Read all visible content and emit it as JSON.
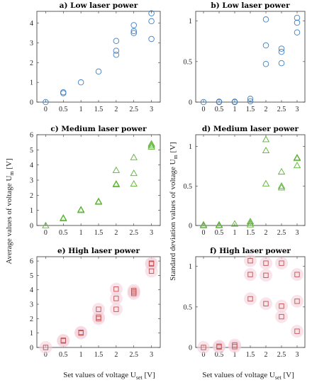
{
  "figure": {
    "ylabel_left": "Average values of voltage U",
    "ylabel_left_sub": "m",
    "ylabel_left_unit": " [V]",
    "ylabel_right": "Standard deviation values of voltage U",
    "ylabel_right_sub": "m",
    "ylabel_right_unit": " [V]",
    "xlabel_left": "Set values of voltage U",
    "xlabel_left_sub": "set",
    "xlabel_left_unit": " [V]",
    "xlabel_right": "Set values of voltage U",
    "xlabel_right_sub": "set",
    "xlabel_right_unit": " [V]"
  },
  "chart_data": [
    {
      "id": "a",
      "type": "scatter",
      "title": "a) Low laser power",
      "marker": "circle",
      "color": "#3f7fc1",
      "xlim": [
        -0.25,
        3.25
      ],
      "ylim": [
        0,
        4.6
      ],
      "xticks": [
        0,
        0.5,
        1,
        1.5,
        2,
        2.5,
        3
      ],
      "xticklabels": [
        "0",
        "0.5",
        "1",
        "1.5",
        "2",
        "2.5",
        "3"
      ],
      "yticks": [
        0,
        1,
        2,
        3,
        4
      ],
      "yticklabels": [
        "0",
        "1",
        "2",
        "3",
        "4"
      ],
      "points": [
        [
          0,
          0
        ],
        [
          0.5,
          0.45
        ],
        [
          0.5,
          0.5
        ],
        [
          1,
          1.0
        ],
        [
          1.5,
          1.55
        ],
        [
          2,
          2.4
        ],
        [
          2,
          2.6
        ],
        [
          2,
          3.1
        ],
        [
          2.5,
          3.5
        ],
        [
          2.5,
          3.6
        ],
        [
          2.5,
          3.9
        ],
        [
          3,
          3.2
        ],
        [
          3,
          4.1
        ],
        [
          3,
          4.5
        ]
      ]
    },
    {
      "id": "b",
      "type": "scatter",
      "title": "b) Low laser power",
      "marker": "circle",
      "color": "#3f7fc1",
      "xlim": [
        -0.25,
        3.25
      ],
      "ylim": [
        0,
        1.12
      ],
      "xticks": [
        0,
        0.5,
        1,
        1.5,
        2,
        2.5,
        3
      ],
      "xticklabels": [
        "0",
        "0.5",
        "1",
        "1.5",
        "2",
        "2.5",
        "3"
      ],
      "yticks": [
        0,
        0.5,
        1
      ],
      "yticklabels": [
        "0",
        "0.5",
        "1"
      ],
      "points": [
        [
          0,
          0
        ],
        [
          0.5,
          0
        ],
        [
          0.5,
          0.005
        ],
        [
          1,
          0
        ],
        [
          1,
          0.005
        ],
        [
          1.5,
          0.01
        ],
        [
          1.5,
          0.04
        ],
        [
          2,
          0.47
        ],
        [
          2,
          0.7
        ],
        [
          2,
          1.02
        ],
        [
          2.5,
          0.48
        ],
        [
          2.5,
          0.62
        ],
        [
          2.5,
          0.66
        ],
        [
          3,
          0.86
        ],
        [
          3,
          0.98
        ],
        [
          3,
          1.04
        ]
      ]
    },
    {
      "id": "c",
      "type": "scatter",
      "title": "c) Medium laser power",
      "marker": "triangle",
      "color": "#5ab232",
      "xlim": [
        -0.25,
        3.25
      ],
      "ylim": [
        0,
        6
      ],
      "xticks": [
        0,
        0.5,
        1,
        1.5,
        2,
        2.5,
        3
      ],
      "xticklabels": [
        "0",
        "0.5",
        "1",
        "1.5",
        "2",
        "2.5",
        "3"
      ],
      "yticks": [
        0,
        1,
        2,
        3,
        4,
        5,
        6
      ],
      "yticklabels": [
        "0",
        "1",
        "2",
        "3",
        "4",
        "5",
        "6"
      ],
      "points": [
        [
          0,
          0
        ],
        [
          0.5,
          0.45
        ],
        [
          0.5,
          0.5
        ],
        [
          1,
          1.0
        ],
        [
          1,
          1.05
        ],
        [
          1.5,
          1.55
        ],
        [
          1.5,
          1.6
        ],
        [
          2,
          2.7
        ],
        [
          2,
          2.75
        ],
        [
          2,
          3.65
        ],
        [
          2.5,
          2.75
        ],
        [
          2.5,
          3.45
        ],
        [
          2.5,
          4.5
        ],
        [
          3,
          5.2
        ],
        [
          3,
          5.3
        ],
        [
          3,
          5.4
        ]
      ]
    },
    {
      "id": "d",
      "type": "scatter",
      "title": "d) Medium laser power",
      "marker": "triangle",
      "color": "#5ab232",
      "xlim": [
        -0.25,
        3.25
      ],
      "ylim": [
        0,
        1.15
      ],
      "xticks": [
        0,
        0.5,
        1,
        1.5,
        2,
        2.5,
        3
      ],
      "xticklabels": [
        "0",
        "0.5",
        "1",
        "1.5",
        "2",
        "2.5",
        "3"
      ],
      "yticks": [
        0,
        0.5,
        1
      ],
      "yticklabels": [
        "0",
        "0.5",
        "1"
      ],
      "points": [
        [
          0,
          0
        ],
        [
          0,
          0.01
        ],
        [
          0.5,
          0
        ],
        [
          0.5,
          0.01
        ],
        [
          1,
          0.02
        ],
        [
          1.5,
          0.01
        ],
        [
          1.5,
          0.03
        ],
        [
          1.5,
          0.05
        ],
        [
          2,
          0.53
        ],
        [
          2,
          0.95
        ],
        [
          2,
          1.09
        ],
        [
          2.5,
          0.48
        ],
        [
          2.5,
          0.5
        ],
        [
          2.5,
          0.68
        ],
        [
          3,
          0.76
        ],
        [
          3,
          0.85
        ],
        [
          3,
          0.86
        ]
      ]
    },
    {
      "id": "e",
      "type": "scatter",
      "title": "e) High laser power",
      "marker": "square",
      "color": "#c0504d",
      "glow": "#f2cdd8",
      "xlim": [
        -0.25,
        3.25
      ],
      "ylim": [
        0,
        6.3
      ],
      "xticks": [
        0,
        0.5,
        1,
        1.5,
        2,
        2.5,
        3
      ],
      "xticklabels": [
        "0",
        "0.5",
        "1",
        "1.5",
        "2",
        "2.5",
        "3"
      ],
      "yticks": [
        0,
        1,
        2,
        3,
        4,
        5,
        6
      ],
      "yticklabels": [
        "0",
        "1",
        "2",
        "3",
        "4",
        "5",
        "6"
      ],
      "points": [
        [
          0,
          0
        ],
        [
          0.5,
          0.45
        ],
        [
          0.5,
          0.5
        ],
        [
          1,
          1.0
        ],
        [
          1,
          1.05
        ],
        [
          1.5,
          2.0
        ],
        [
          1.5,
          2.1
        ],
        [
          1.5,
          2.65
        ],
        [
          2,
          2.65
        ],
        [
          2,
          3.4
        ],
        [
          2,
          4.05
        ],
        [
          2.5,
          3.75
        ],
        [
          2.5,
          3.85
        ],
        [
          2.5,
          3.95
        ],
        [
          3,
          5.3
        ],
        [
          3,
          5.8
        ],
        [
          3,
          5.85
        ]
      ]
    },
    {
      "id": "f",
      "type": "scatter",
      "title": "f) High laser power",
      "marker": "square",
      "color": "#c0504d",
      "glow": "#f2cdd8",
      "xlim": [
        -0.25,
        3.25
      ],
      "ylim": [
        0,
        1.12
      ],
      "xticks": [
        0,
        0.5,
        1,
        1.5,
        2,
        2.5,
        3
      ],
      "xticklabels": [
        "0",
        "0.5",
        "1",
        "1.5",
        "2",
        "2.5",
        "3"
      ],
      "yticks": [
        0,
        0.5,
        1
      ],
      "yticklabels": [
        "0",
        "0.5",
        "1"
      ],
      "points": [
        [
          0,
          0
        ],
        [
          0.5,
          0.005
        ],
        [
          0.5,
          0.015
        ],
        [
          1,
          0.01
        ],
        [
          1,
          0.03
        ],
        [
          1.5,
          0.6
        ],
        [
          1.5,
          0.9
        ],
        [
          1.5,
          1.07
        ],
        [
          2,
          0.54
        ],
        [
          2,
          0.89
        ],
        [
          2,
          1.04
        ],
        [
          2.5,
          0.38
        ],
        [
          2.5,
          0.51
        ],
        [
          2.5,
          1.04
        ],
        [
          3,
          0.2
        ],
        [
          3,
          0.57
        ],
        [
          3,
          0.9
        ]
      ]
    }
  ]
}
